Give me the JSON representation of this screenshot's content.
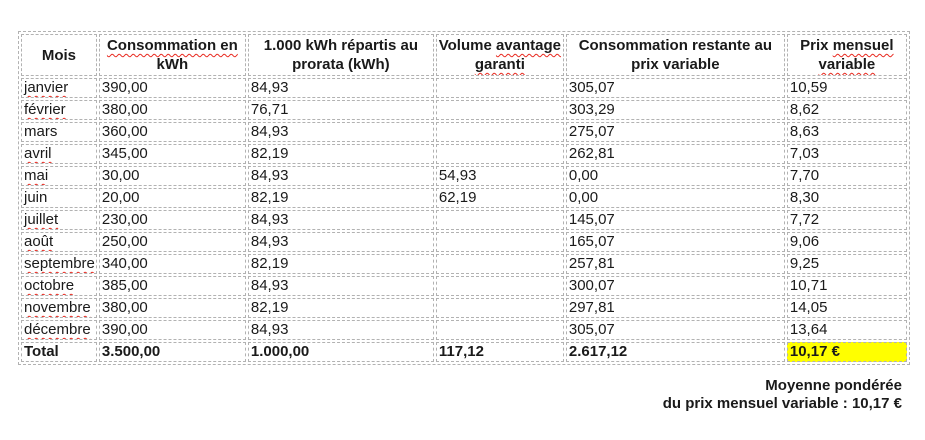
{
  "colors": {
    "highlight": "#ffff00",
    "squiggle": "#e8281e",
    "border": "#b2b2b2",
    "text": "#1a1a1a"
  },
  "table": {
    "headers": [
      {
        "id": "mois",
        "lines": [
          [
            {
              "t": "Mois",
              "sq": false
            }
          ]
        ]
      },
      {
        "id": "consommation-en-kwh",
        "lines": [
          [
            {
              "t": "Consommation en",
              "sq": true
            }
          ],
          [
            {
              "t": "kWh",
              "sq": false
            }
          ]
        ]
      },
      {
        "id": "repartis-au-prorata",
        "lines": [
          [
            {
              "t": "1.000 kWh répartis au",
              "sq": false
            }
          ],
          [
            {
              "t": "prorata (kWh)",
              "sq": false
            }
          ]
        ]
      },
      {
        "id": "volume-avantage-garanti",
        "lines": [
          [
            {
              "t": "Volume ",
              "sq": false
            },
            {
              "t": "avantage",
              "sq": true
            }
          ],
          [
            {
              "t": "garanti",
              "sq": true
            }
          ]
        ]
      },
      {
        "id": "consommation-restante",
        "lines": [
          [
            {
              "t": "Consommation restante au",
              "sq": false
            }
          ],
          [
            {
              "t": "prix variable",
              "sq": false
            }
          ]
        ]
      },
      {
        "id": "prix-mensuel-variable",
        "lines": [
          [
            {
              "t": "Prix ",
              "sq": false
            },
            {
              "t": "mensuel",
              "sq": true
            }
          ],
          [
            {
              "t": "variable",
              "sq": true
            }
          ]
        ]
      }
    ],
    "rows": [
      {
        "month": "janvier",
        "sq": true,
        "cells": [
          "390,00",
          "84,93",
          "",
          "305,07",
          "10,59"
        ]
      },
      {
        "month": "février",
        "sq": true,
        "cells": [
          "380,00",
          "76,71",
          "",
          "303,29",
          "8,62"
        ]
      },
      {
        "month": "mars",
        "sq": false,
        "cells": [
          "360,00",
          "84,93",
          "",
          "275,07",
          "8,63"
        ]
      },
      {
        "month": "avril",
        "sq": true,
        "cells": [
          "345,00",
          "82,19",
          "",
          "262,81",
          "7,03"
        ]
      },
      {
        "month": "mai",
        "sq": true,
        "cells": [
          "30,00",
          "84,93",
          "54,93",
          "0,00",
          "7,70"
        ]
      },
      {
        "month": "juin",
        "sq": false,
        "cells": [
          "20,00",
          "82,19",
          "62,19",
          "0,00",
          "8,30"
        ]
      },
      {
        "month": "juillet",
        "sq": true,
        "cells": [
          "230,00",
          "84,93",
          "",
          "145,07",
          "7,72"
        ]
      },
      {
        "month": "août",
        "sq": true,
        "cells": [
          "250,00",
          "84,93",
          "",
          "165,07",
          "9,06"
        ]
      },
      {
        "month": "septembre",
        "sq": true,
        "cells": [
          "340,00",
          "82,19",
          "",
          "257,81",
          "9,25"
        ]
      },
      {
        "month": "octobre",
        "sq": true,
        "cells": [
          "385,00",
          "84,93",
          "",
          "300,07",
          "10,71"
        ]
      },
      {
        "month": "novembre",
        "sq": true,
        "cells": [
          "380,00",
          "82,19",
          "",
          "297,81",
          "14,05"
        ]
      },
      {
        "month": "décembre",
        "sq": true,
        "cells": [
          "390,00",
          "84,93",
          "",
          "305,07",
          "13,64"
        ]
      }
    ],
    "total": {
      "label": "Total",
      "cells": [
        "3.500,00",
        "1.000,00",
        "117,12",
        "2.617,12",
        "10,17 €"
      ],
      "highlight_last": true
    }
  },
  "footer": {
    "line1": "Moyenne pondérée",
    "line2": "du prix mensuel variable : 10,17 €"
  }
}
